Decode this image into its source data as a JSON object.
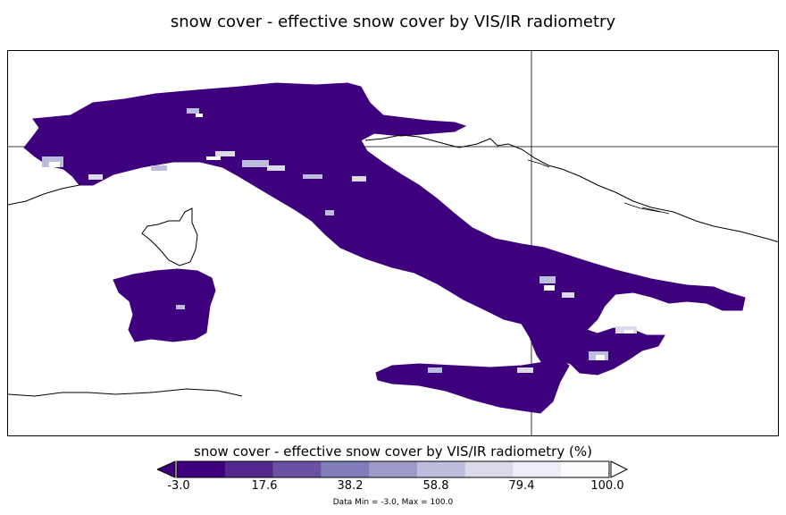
{
  "title": "snow cover - effective snow cover by VIS/IR radiometry",
  "colorbar": {
    "label": "snow cover - effective snow cover by VIS/IR radiometry (%)",
    "ticks": [
      "-3.0",
      "17.6",
      "38.2",
      "58.8",
      "79.4",
      "100.0"
    ],
    "colors": [
      "#3f007d",
      "#54278f",
      "#6a51a3",
      "#807dba",
      "#9e9ac8",
      "#bcbddc",
      "#dadaeb",
      "#efedf5",
      "#fcfbfd"
    ],
    "under_color": "#3f007d",
    "over_color": "#ffffff"
  },
  "data_range": "Data Min = -3.0, Max = 100.0",
  "map": {
    "region": "Italy",
    "land_fill": "#3f007d",
    "snow_patch_colors": [
      "#bcbddc",
      "#dadaeb",
      "#ffffff"
    ]
  }
}
